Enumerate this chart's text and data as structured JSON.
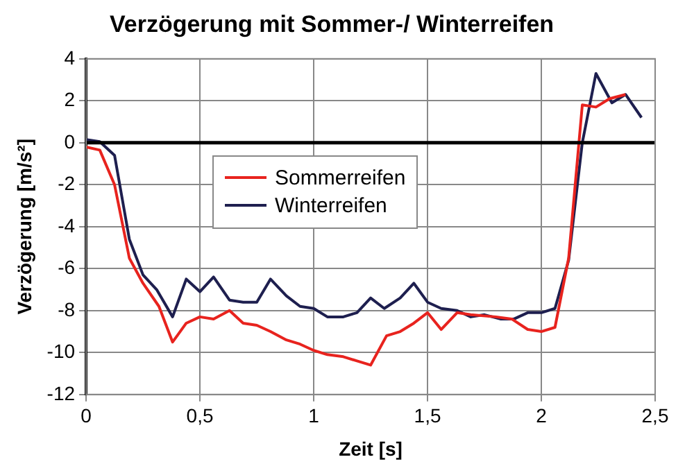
{
  "chart_data": {
    "type": "line",
    "title": "Verzögerung mit Sommer-/ Winterreifen",
    "xlabel": "Zeit [s]",
    "ylabel": "Verzögerung [m/s²]",
    "xlim": [
      0,
      2.5
    ],
    "xticks": [
      0,
      {
        "value": 0.5,
        "label": "0,5"
      },
      1,
      {
        "value": 1.5,
        "label": "1,5"
      },
      2,
      {
        "value": 2.5,
        "label": "2,5"
      }
    ],
    "ylim": [
      -12,
      4
    ],
    "yticks": [
      -12,
      -10,
      -8,
      -6,
      -4,
      -2,
      0,
      2,
      4
    ],
    "grid": true,
    "legend": "center",
    "marker": "none",
    "line_style": "solid",
    "ref_lines": [
      {
        "axis": "y",
        "value": 0,
        "color": "#000000"
      }
    ],
    "series": [
      {
        "name": "Sommerreifen",
        "color": "#e8231e",
        "x": [
          0,
          0.06,
          0.125,
          0.19,
          0.25,
          0.32,
          0.38,
          0.44,
          0.5,
          0.56,
          0.63,
          0.69,
          0.75,
          0.81,
          0.88,
          0.94,
          1.0,
          1.06,
          1.13,
          1.19,
          1.25,
          1.32,
          1.38,
          1.44,
          1.5,
          1.56,
          1.63,
          1.69,
          1.8,
          1.87,
          1.94,
          2.0,
          2.06,
          2.12,
          2.18,
          2.24,
          2.3,
          2.37
        ],
        "values": [
          -0.2,
          -0.35,
          -2.0,
          -5.5,
          -6.7,
          -7.8,
          -9.5,
          -8.6,
          -8.3,
          -8.4,
          -8.0,
          -8.6,
          -8.7,
          -9.0,
          -9.4,
          -9.6,
          -9.9,
          -10.1,
          -10.2,
          -10.4,
          -10.6,
          -9.2,
          -9.0,
          -8.6,
          -8.1,
          -8.9,
          -8.1,
          -8.2,
          -8.3,
          -8.4,
          -8.9,
          -9.0,
          -8.8,
          -5.5,
          1.8,
          1.7,
          2.1,
          2.3
        ]
      },
      {
        "name": "Winterreifen",
        "color": "#1e1f4f",
        "x": [
          0,
          0.06,
          0.125,
          0.19,
          0.25,
          0.31,
          0.38,
          0.44,
          0.5,
          0.56,
          0.63,
          0.69,
          0.75,
          0.81,
          0.88,
          0.94,
          1.0,
          1.06,
          1.13,
          1.19,
          1.25,
          1.31,
          1.38,
          1.44,
          1.5,
          1.56,
          1.63,
          1.69,
          1.75,
          1.82,
          1.88,
          1.94,
          2.0,
          2.06,
          2.12,
          2.18,
          2.24,
          2.31,
          2.37,
          2.44
        ],
        "values": [
          0.15,
          0.05,
          -0.6,
          -4.6,
          -6.3,
          -7.0,
          -8.3,
          -6.5,
          -7.1,
          -6.4,
          -7.5,
          -7.6,
          -7.6,
          -6.5,
          -7.3,
          -7.8,
          -7.9,
          -8.3,
          -8.3,
          -8.1,
          -7.4,
          -7.9,
          -7.4,
          -6.7,
          -7.6,
          -7.9,
          -8.0,
          -8.3,
          -8.2,
          -8.4,
          -8.4,
          -8.1,
          -8.1,
          -7.9,
          -5.6,
          0,
          3.3,
          1.9,
          2.3,
          1.2
        ]
      }
    ]
  }
}
